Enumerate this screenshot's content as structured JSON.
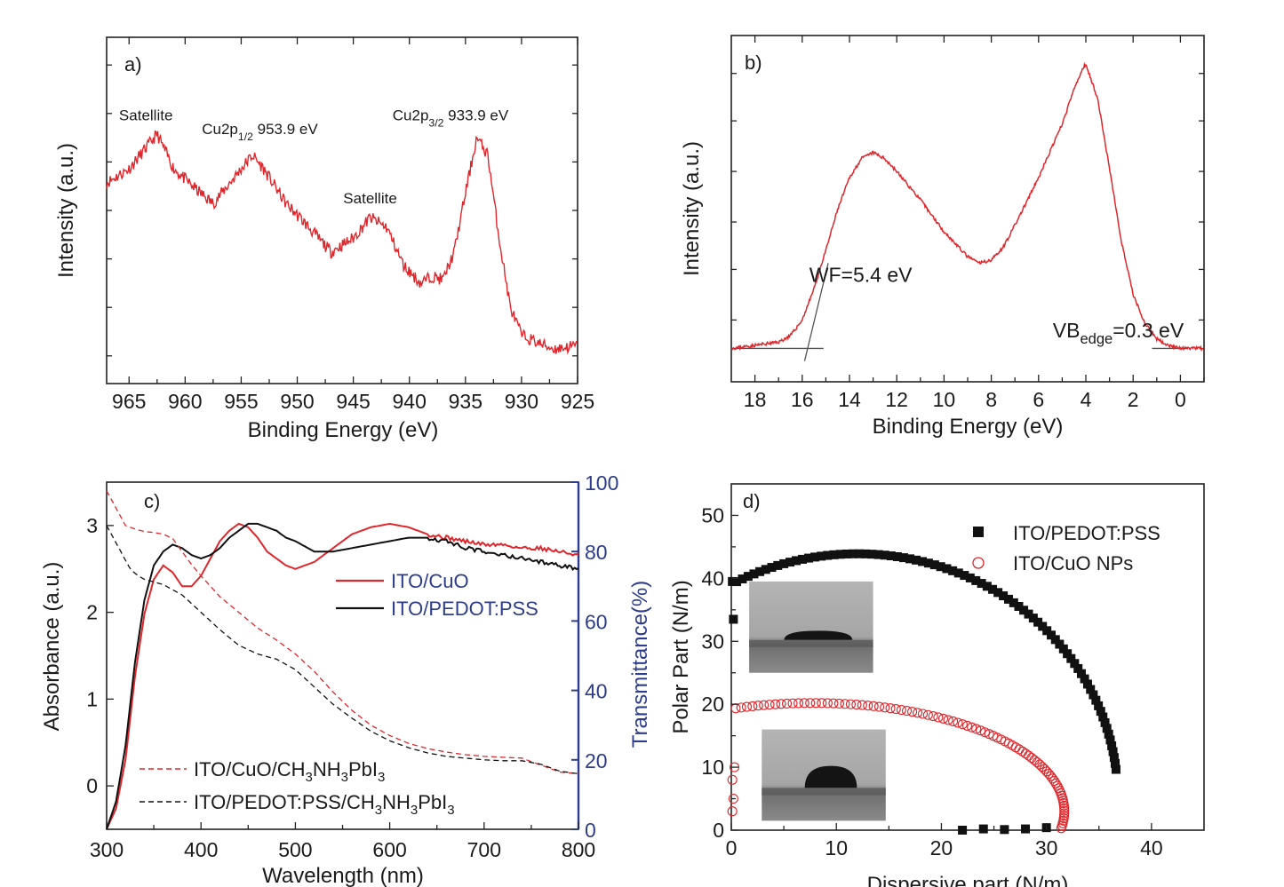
{
  "colors": {
    "red": "#e0262b",
    "black": "#111111",
    "blue_axis": "#2d3c8c",
    "photo_gray": "#9a9a9a"
  },
  "chart_data": [
    {
      "panel": "a)",
      "type": "line",
      "xlabel": "Binding Energy (eV)",
      "ylabel": "Intensity (a.u.)",
      "xlim": [
        967,
        925
      ],
      "xticks": [
        965,
        960,
        955,
        950,
        945,
        940,
        935,
        930,
        925
      ],
      "series": [
        {
          "color": "#e0262b",
          "x": [
            967,
            965,
            963,
            962.5,
            961,
            959,
            957.5,
            955,
            954,
            953,
            951,
            949.5,
            947,
            945,
            943.5,
            942,
            940.5,
            939,
            938,
            937,
            936,
            935,
            934,
            933,
            932,
            931,
            930,
            928,
            927,
            925
          ],
          "y": [
            0.58,
            0.62,
            0.7,
            0.72,
            0.62,
            0.56,
            0.52,
            0.62,
            0.66,
            0.62,
            0.52,
            0.47,
            0.38,
            0.42,
            0.48,
            0.45,
            0.34,
            0.29,
            0.31,
            0.3,
            0.38,
            0.55,
            0.71,
            0.66,
            0.42,
            0.22,
            0.14,
            0.11,
            0.1,
            0.11
          ]
        }
      ],
      "annotations": [
        {
          "text": "Satellite",
          "x": 963.5,
          "y": 0.76
        },
        {
          "text": "Cu2p",
          "sub": "1/2",
          "value": "953.9 eV",
          "x": 958.5,
          "y": 0.72
        },
        {
          "text": "Satellite",
          "x": 943.5,
          "y": 0.52
        },
        {
          "text": "Cu2p",
          "sub": "3/2",
          "value": "933.9 eV",
          "x": 941.5,
          "y": 0.76
        }
      ]
    },
    {
      "panel": "b)",
      "type": "line",
      "xlabel": "Binding Energy (eV)",
      "ylabel": "Intensity (a.u.)",
      "xlim": [
        19,
        -1
      ],
      "xticks": [
        18,
        16,
        14,
        12,
        10,
        8,
        6,
        4,
        2,
        0
      ],
      "series": [
        {
          "color": "#e0262b",
          "x": [
            19,
            18,
            17,
            16.5,
            16,
            15.5,
            15,
            14.5,
            14,
            13.5,
            13,
            12.5,
            12,
            11,
            10,
            9,
            8.5,
            8,
            7.5,
            7,
            6,
            5,
            4.5,
            4.1,
            4,
            3.5,
            3,
            2.5,
            2,
            1.5,
            1,
            0.5,
            0,
            -0.5,
            -1
          ],
          "y": [
            0.01,
            0.02,
            0.03,
            0.05,
            0.1,
            0.2,
            0.32,
            0.45,
            0.55,
            0.61,
            0.63,
            0.61,
            0.57,
            0.48,
            0.38,
            0.3,
            0.28,
            0.29,
            0.33,
            0.4,
            0.55,
            0.72,
            0.83,
            0.9,
            0.91,
            0.8,
            0.58,
            0.35,
            0.18,
            0.09,
            0.04,
            0.02,
            0.01,
            0.01,
            0.01
          ]
        }
      ],
      "fit_lines": [
        {
          "x": [
            15.1,
            19
          ],
          "y": [
            0.01,
            0.01
          ]
        },
        {
          "x": [
            15.9,
            14.9
          ],
          "y": [
            -0.03,
            0.28
          ]
        },
        {
          "x": [
            1.2,
            -0.3
          ],
          "y": [
            0.01,
            0.01
          ]
        }
      ],
      "annotations": [
        {
          "text": "WF=5.4 eV",
          "x": 15.7,
          "y": 0.22
        },
        {
          "text": "VB",
          "sub": "edge",
          "value": "=0.3 eV",
          "x": 5.4,
          "y": 0.04
        }
      ]
    },
    {
      "panel": "c)",
      "type": "line",
      "xlabel": "Wavelength (nm)",
      "ylabel": "Absorbance (a.u.)",
      "y2label": "Transmittance(%)",
      "xlim": [
        300,
        800
      ],
      "ylim": [
        -0.5,
        3.5
      ],
      "y2lim": [
        0,
        100
      ],
      "xticks": [
        300,
        400,
        500,
        600,
        700,
        800
      ],
      "yticks": [
        0,
        1,
        2,
        3
      ],
      "y2ticks": [
        0,
        20,
        40,
        60,
        80,
        100
      ],
      "legend_right": [
        "ITO/CuO",
        "ITO/PEDOT:PSS"
      ],
      "legend_left": [
        "ITO/CuO/CH3NH3PbI3",
        "ITO/PEDOT:PSS/CH3NH3PbI3"
      ],
      "series": [
        {
          "name": "ITO/CuO",
          "axis": "right",
          "color": "#e0262b",
          "dash": "none",
          "x": [
            300,
            310,
            320,
            330,
            340,
            350,
            360,
            370,
            380,
            390,
            400,
            410,
            420,
            430,
            440,
            450,
            460,
            470,
            480,
            490,
            500,
            520,
            540,
            560,
            580,
            600,
            620,
            640,
            660,
            680,
            700,
            720,
            740,
            760,
            780,
            800
          ],
          "y": [
            0,
            6,
            20,
            44,
            62,
            72,
            76,
            74,
            70,
            70,
            73,
            78,
            83,
            86,
            88,
            87,
            84,
            80,
            78,
            76,
            75,
            77,
            81,
            85,
            87,
            88,
            87,
            85,
            84,
            83,
            82,
            82,
            81,
            81,
            80,
            79
          ]
        },
        {
          "name": "ITO/PEDOT:PSS",
          "axis": "right",
          "color": "#111111",
          "dash": "none",
          "x": [
            300,
            310,
            320,
            330,
            340,
            350,
            360,
            370,
            380,
            390,
            400,
            410,
            420,
            430,
            440,
            450,
            460,
            470,
            480,
            490,
            500,
            520,
            540,
            560,
            580,
            600,
            620,
            640,
            660,
            680,
            700,
            720,
            740,
            760,
            780,
            800
          ],
          "y": [
            0,
            8,
            24,
            48,
            66,
            76,
            80,
            82,
            81,
            79,
            78,
            79,
            81,
            84,
            86,
            88,
            88,
            87,
            86,
            84,
            83,
            80,
            80,
            81,
            82,
            83,
            84,
            84,
            83,
            81,
            80,
            79,
            78,
            77,
            76,
            75
          ]
        },
        {
          "name": "ITO/CuO/CH3NH3PbI3",
          "axis": "left",
          "color": "#e0262b",
          "dash": "6,4",
          "x": [
            300,
            305,
            310,
            315,
            320,
            330,
            340,
            350,
            360,
            370,
            380,
            390,
            400,
            420,
            440,
            460,
            480,
            500,
            520,
            540,
            560,
            580,
            600,
            620,
            640,
            660,
            680,
            700,
            720,
            740,
            760,
            780,
            800
          ],
          "y": [
            3.4,
            3.3,
            3.2,
            3.1,
            3.0,
            2.96,
            2.93,
            2.92,
            2.9,
            2.85,
            2.7,
            2.55,
            2.42,
            2.18,
            2.0,
            1.82,
            1.68,
            1.52,
            1.32,
            1.08,
            0.87,
            0.7,
            0.58,
            0.49,
            0.43,
            0.39,
            0.36,
            0.34,
            0.33,
            0.32,
            0.24,
            0.16,
            0.14
          ]
        },
        {
          "name": "ITO/PEDOT:PSS/CH3NH3PbI3",
          "axis": "left",
          "color": "#111111",
          "dash": "6,4",
          "x": [
            300,
            305,
            310,
            315,
            320,
            325,
            330,
            335,
            340,
            350,
            360,
            380,
            400,
            420,
            440,
            460,
            480,
            500,
            520,
            540,
            560,
            580,
            600,
            620,
            640,
            660,
            680,
            700,
            720,
            740,
            760,
            780,
            800
          ],
          "y": [
            3.0,
            2.9,
            2.8,
            2.7,
            2.6,
            2.5,
            2.45,
            2.41,
            2.38,
            2.35,
            2.32,
            2.2,
            2.0,
            1.8,
            1.62,
            1.52,
            1.46,
            1.34,
            1.14,
            0.94,
            0.78,
            0.63,
            0.52,
            0.44,
            0.38,
            0.34,
            0.32,
            0.3,
            0.29,
            0.29,
            0.25,
            0.17,
            0.14
          ]
        }
      ]
    },
    {
      "panel": "d)",
      "type": "scatter",
      "xlabel": "Dispersive part (N/m)",
      "ylabel": "Polar Part (N/m)",
      "xlim": [
        0,
        45
      ],
      "ylim": [
        0,
        55
      ],
      "xticks": [
        0,
        10,
        20,
        30,
        40
      ],
      "yticks": [
        0,
        10,
        20,
        30,
        40,
        50
      ],
      "legend": [
        "ITO/PEDOT:PSS",
        "ITO/CuO NPs"
      ],
      "series": [
        {
          "name": "ITO/PEDOT:PSS",
          "marker": "filled-square",
          "color": "#111111",
          "ellipse": {
            "cx": 12.0,
            "cy": 5.0,
            "rx": 24.8,
            "ry": 38.9,
            "t_start": 0.12,
            "t_end": 3.3
          },
          "extra_points": [
            [
              22,
              0
            ],
            [
              24,
              0.2
            ],
            [
              26,
              0.1
            ],
            [
              28,
              0.2
            ],
            [
              30,
              0.4
            ],
            [
              0.2,
              33.5
            ],
            [
              0.1,
              39.5
            ]
          ]
        },
        {
          "name": "ITO/CuO NPs",
          "marker": "open-circle",
          "color": "#e0262b",
          "ellipse": {
            "cx": 7.8,
            "cy": 3.0,
            "rx": 23.9,
            "ry": 17.2,
            "t_start": -0.18,
            "t_end": 3.3
          },
          "extra_points": [
            [
              0.1,
              3
            ],
            [
              0.2,
              5
            ],
            [
              0.1,
              8
            ],
            [
              0.3,
              10
            ]
          ]
        }
      ],
      "insets": [
        {
          "name": "droplet-photo-pedot",
          "x": [
            1.7,
            13.5
          ],
          "y": [
            25,
            39.5
          ],
          "drop_width": 0.55,
          "drop_height": 0.1
        },
        {
          "name": "droplet-photo-cuo",
          "x": [
            2.9,
            14.7
          ],
          "y": [
            1.5,
            16
          ],
          "drop_width": 0.42,
          "drop_height": 0.24
        }
      ]
    }
  ]
}
